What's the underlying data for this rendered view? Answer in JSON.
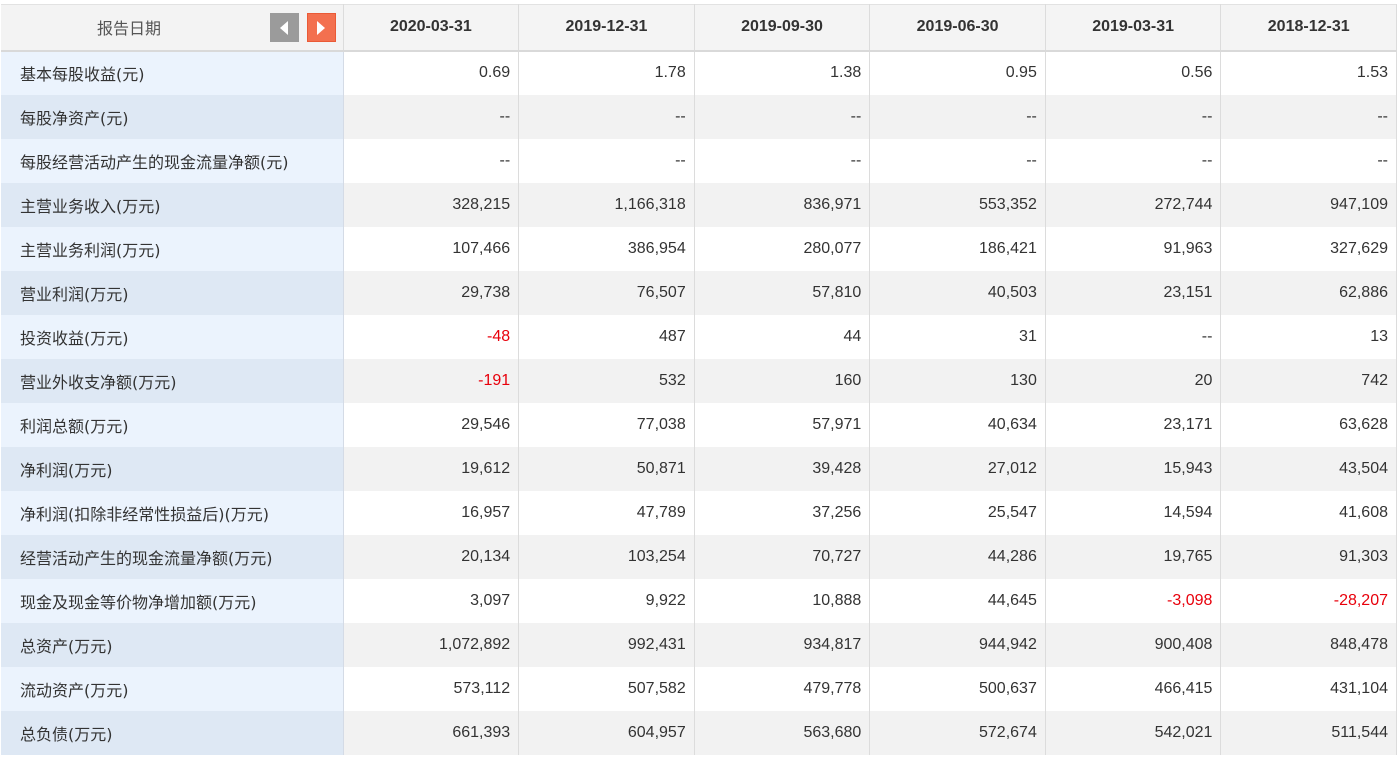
{
  "header": {
    "corner_label": "报告日期",
    "dates": [
      "2020-03-31",
      "2019-12-31",
      "2019-09-30",
      "2019-06-30",
      "2019-03-31",
      "2018-12-31"
    ]
  },
  "colors": {
    "negative": "#e8000b",
    "next_button": "#f3704f",
    "prev_button": "#9b9b9b"
  },
  "icons": {
    "prev": "chevron-left-icon",
    "next": "chevron-right-icon"
  },
  "rows": [
    {
      "label": "基本每股收益(元)",
      "values": [
        "0.69",
        "1.78",
        "1.38",
        "0.95",
        "0.56",
        "1.53"
      ]
    },
    {
      "label": "每股净资产(元)",
      "values": [
        "--",
        "--",
        "--",
        "--",
        "--",
        "--"
      ]
    },
    {
      "label": "每股经营活动产生的现金流量净额(元)",
      "values": [
        "--",
        "--",
        "--",
        "--",
        "--",
        "--"
      ]
    },
    {
      "label": "主营业务收入(万元)",
      "values": [
        "328,215",
        "1,166,318",
        "836,971",
        "553,352",
        "272,744",
        "947,109"
      ]
    },
    {
      "label": "主营业务利润(万元)",
      "values": [
        "107,466",
        "386,954",
        "280,077",
        "186,421",
        "91,963",
        "327,629"
      ]
    },
    {
      "label": "营业利润(万元)",
      "values": [
        "29,738",
        "76,507",
        "57,810",
        "40,503",
        "23,151",
        "62,886"
      ]
    },
    {
      "label": "投资收益(万元)",
      "values": [
        "-48",
        "487",
        "44",
        "31",
        "--",
        "13"
      ]
    },
    {
      "label": "营业外收支净额(万元)",
      "values": [
        "-191",
        "532",
        "160",
        "130",
        "20",
        "742"
      ]
    },
    {
      "label": "利润总额(万元)",
      "values": [
        "29,546",
        "77,038",
        "57,971",
        "40,634",
        "23,171",
        "63,628"
      ]
    },
    {
      "label": "净利润(万元)",
      "values": [
        "19,612",
        "50,871",
        "39,428",
        "27,012",
        "15,943",
        "43,504"
      ]
    },
    {
      "label": "净利润(扣除非经常性损益后)(万元)",
      "values": [
        "16,957",
        "47,789",
        "37,256",
        "25,547",
        "14,594",
        "41,608"
      ]
    },
    {
      "label": "经营活动产生的现金流量净额(万元)",
      "values": [
        "20,134",
        "103,254",
        "70,727",
        "44,286",
        "19,765",
        "91,303"
      ]
    },
    {
      "label": "现金及现金等价物净增加额(万元)",
      "values": [
        "3,097",
        "9,922",
        "10,888",
        "44,645",
        "-3,098",
        "-28,207"
      ]
    },
    {
      "label": "总资产(万元)",
      "values": [
        "1,072,892",
        "992,431",
        "934,817",
        "944,942",
        "900,408",
        "848,478"
      ]
    },
    {
      "label": "流动资产(万元)",
      "values": [
        "573,112",
        "507,582",
        "479,778",
        "500,637",
        "466,415",
        "431,104"
      ]
    },
    {
      "label": "总负债(万元)",
      "values": [
        "661,393",
        "604,957",
        "563,680",
        "572,674",
        "542,021",
        "511,544"
      ]
    }
  ]
}
